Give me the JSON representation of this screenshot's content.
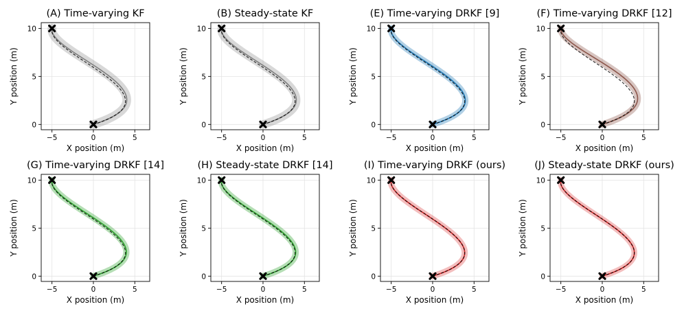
{
  "chart_data": [
    {
      "type": "line",
      "title": "(A) Time-varying KF",
      "xlabel": "X position (m)",
      "ylabel": "Y position (m)",
      "xlim": [
        -6.3,
        6.8
      ],
      "ylim": [
        -0.55,
        10.6
      ],
      "xticks": [
        -5,
        0,
        5
      ],
      "yticks": [
        0,
        5,
        10
      ],
      "xtick_labels": [
        "−5",
        "0",
        "5"
      ],
      "ytick_labels": [
        "0",
        "5",
        "10"
      ],
      "grid": true,
      "color": "#7f7f7f",
      "band_width_m": 1.05,
      "band_opacity": 0.3,
      "est_offset": [
        0.22,
        0.12
      ],
      "series": [
        {
          "name": "true trajectory",
          "style": "dashed"
        },
        {
          "name": "estimated trajectory",
          "style": "solid"
        }
      ],
      "markers": {
        "start": [
          0,
          0
        ],
        "goal": [
          -5,
          10
        ]
      }
    },
    {
      "type": "line",
      "title": "(B) Steady-state KF",
      "xlabel": "X position (m)",
      "ylabel": "Y position (m)",
      "xlim": [
        -6.3,
        6.8
      ],
      "ylim": [
        -0.55,
        10.6
      ],
      "xticks": [
        -5,
        0,
        5
      ],
      "yticks": [
        0,
        5,
        10
      ],
      "xtick_labels": [
        "−5",
        "0",
        "5"
      ],
      "ytick_labels": [
        "0",
        "5",
        "10"
      ],
      "grid": true,
      "color": "#7f7f7f",
      "band_width_m": 1.0,
      "band_opacity": 0.3,
      "est_offset": [
        0.2,
        0.1
      ],
      "series": [
        {
          "name": "true trajectory",
          "style": "dashed"
        },
        {
          "name": "estimated trajectory",
          "style": "solid"
        }
      ],
      "markers": {
        "start": [
          0,
          0
        ],
        "goal": [
          -5,
          10
        ]
      }
    },
    {
      "type": "line",
      "title": "(E) Time-varying DRKF [9]",
      "xlabel": "X position (m)",
      "ylabel": "Y position (m)",
      "xlim": [
        -6.3,
        6.8
      ],
      "ylim": [
        -0.55,
        10.6
      ],
      "xticks": [
        -5,
        0,
        5
      ],
      "yticks": [
        0,
        5,
        10
      ],
      "xtick_labels": [
        "−5",
        "0",
        "5"
      ],
      "ytick_labels": [
        "0",
        "5",
        "10"
      ],
      "grid": true,
      "color": "#1f77b4",
      "band_width_m": 0.75,
      "band_opacity": 0.35,
      "est_offset": [
        0.1,
        0.05
      ],
      "series": [
        {
          "name": "true trajectory",
          "style": "dashed"
        },
        {
          "name": "estimated trajectory",
          "style": "solid"
        }
      ],
      "markers": {
        "start": [
          0,
          0
        ],
        "goal": [
          -5,
          10
        ]
      }
    },
    {
      "type": "line",
      "title": "(F) Time-varying DRKF [12]",
      "xlabel": "X position (m)",
      "ylabel": "Y position (m)",
      "xlim": [
        -6.3,
        6.8
      ],
      "ylim": [
        -0.55,
        10.6
      ],
      "xticks": [
        -5,
        0,
        5
      ],
      "yticks": [
        0,
        5,
        10
      ],
      "xtick_labels": [
        "−5",
        "0",
        "5"
      ],
      "ytick_labels": [
        "0",
        "5",
        "10"
      ],
      "grid": true,
      "color": "#8c564b",
      "band_width_m": 0.8,
      "band_opacity": 0.35,
      "est_offset": [
        0.55,
        0.2
      ],
      "series": [
        {
          "name": "true trajectory",
          "style": "dashed"
        },
        {
          "name": "estimated trajectory",
          "style": "solid"
        }
      ],
      "markers": {
        "start": [
          0,
          0
        ],
        "goal": [
          -5,
          10
        ]
      }
    },
    {
      "type": "line",
      "title": "(G) Time-varying DRKF [14]",
      "xlabel": "X position (m)",
      "ylabel": "Y position (m)",
      "xlim": [
        -6.3,
        6.8
      ],
      "ylim": [
        -0.55,
        10.6
      ],
      "xticks": [
        -5,
        0,
        5
      ],
      "yticks": [
        0,
        5,
        10
      ],
      "xtick_labels": [
        "−5",
        "0",
        "5"
      ],
      "ytick_labels": [
        "0",
        "5",
        "10"
      ],
      "grid": true,
      "color": "#2ca02c",
      "band_width_m": 0.75,
      "band_opacity": 0.35,
      "est_offset": [
        0.15,
        0.05
      ],
      "series": [
        {
          "name": "true trajectory",
          "style": "dashed"
        },
        {
          "name": "estimated trajectory",
          "style": "solid"
        }
      ],
      "markers": {
        "start": [
          0,
          0
        ],
        "goal": [
          -5,
          10
        ]
      }
    },
    {
      "type": "line",
      "title": "(H) Steady-state DRKF [14]",
      "xlabel": "X position (m)",
      "ylabel": "Y position (m)",
      "xlim": [
        -6.3,
        6.8
      ],
      "ylim": [
        -0.55,
        10.6
      ],
      "xticks": [
        -5,
        0,
        5
      ],
      "yticks": [
        0,
        5,
        10
      ],
      "xtick_labels": [
        "−5",
        "0",
        "5"
      ],
      "ytick_labels": [
        "0",
        "5",
        "10"
      ],
      "grid": true,
      "color": "#2ca02c",
      "band_width_m": 0.75,
      "band_opacity": 0.35,
      "est_offset": [
        0.1,
        0.04
      ],
      "series": [
        {
          "name": "true trajectory",
          "style": "dashed"
        },
        {
          "name": "estimated trajectory",
          "style": "solid"
        }
      ],
      "markers": {
        "start": [
          0,
          0
        ],
        "goal": [
          -5,
          10
        ]
      }
    },
    {
      "type": "line",
      "title": "(I) Time-varying DRKF (ours)",
      "xlabel": "X position (m)",
      "ylabel": "Y position (m)",
      "xlim": [
        -6.3,
        6.8
      ],
      "ylim": [
        -0.55,
        10.6
      ],
      "xticks": [
        -5,
        0,
        5
      ],
      "yticks": [
        0,
        5,
        10
      ],
      "xtick_labels": [
        "−5",
        "0",
        "5"
      ],
      "ytick_labels": [
        "0",
        "5",
        "10"
      ],
      "grid": true,
      "color": "#d62728",
      "band_width_m": 0.75,
      "band_opacity": 0.3,
      "est_offset": [
        0.0,
        0.0
      ],
      "series": [
        {
          "name": "true trajectory",
          "style": "dashed"
        },
        {
          "name": "estimated trajectory",
          "style": "solid"
        }
      ],
      "markers": {
        "start": [
          0,
          0
        ],
        "goal": [
          -5,
          10
        ]
      }
    },
    {
      "type": "line",
      "title": "(J) Steady-state DRKF (ours)",
      "xlabel": "X position (m)",
      "ylabel": "Y position (m)",
      "xlim": [
        -6.3,
        6.8
      ],
      "ylim": [
        -0.55,
        10.6
      ],
      "xticks": [
        -5,
        0,
        5
      ],
      "yticks": [
        0,
        5,
        10
      ],
      "xtick_labels": [
        "−5",
        "0",
        "5"
      ],
      "ytick_labels": [
        "0",
        "5",
        "10"
      ],
      "grid": true,
      "color": "#d62728",
      "band_width_m": 0.7,
      "band_opacity": 0.3,
      "est_offset": [
        0.0,
        0.0
      ],
      "series": [
        {
          "name": "true trajectory",
          "style": "dashed"
        },
        {
          "name": "estimated trajectory",
          "style": "solid"
        }
      ],
      "markers": {
        "start": [
          0,
          0
        ],
        "goal": [
          -5,
          10
        ]
      }
    }
  ]
}
